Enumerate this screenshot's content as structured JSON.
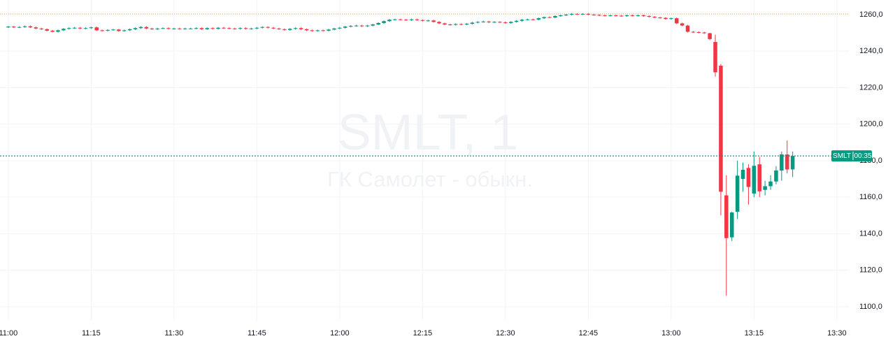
{
  "chart_data": {
    "type": "candlestick",
    "watermark_title": "SMLT, 1",
    "watermark_subtitle": "ГК Самолет - обыкн.",
    "up_color": "#089981",
    "down_color": "#f23645",
    "grid": true,
    "xlim": [
      658.5,
      812.3
    ],
    "xticks": [
      {
        "value": 660,
        "label": "11:00"
      },
      {
        "value": 675,
        "label": "11:15"
      },
      {
        "value": 690,
        "label": "11:30"
      },
      {
        "value": 705,
        "label": "11:45"
      },
      {
        "value": 720,
        "label": "12:00"
      },
      {
        "value": 735,
        "label": "12:15"
      },
      {
        "value": 750,
        "label": "12:30"
      },
      {
        "value": 765,
        "label": "12:45"
      },
      {
        "value": 780,
        "label": "13:00"
      },
      {
        "value": 795,
        "label": "13:15"
      },
      {
        "value": 810,
        "label": "13:30"
      }
    ],
    "ylim": [
      1092.7,
      1268.0
    ],
    "yticks": [
      {
        "value": 1100,
        "label": "1100,0"
      },
      {
        "value": 1120,
        "label": "1120,0"
      },
      {
        "value": 1140,
        "label": "1140,0"
      },
      {
        "value": 1160,
        "label": "1160,0"
      },
      {
        "value": 1180,
        "label": "1180,0"
      },
      {
        "value": 1200,
        "label": "1200,0"
      },
      {
        "value": 1220,
        "label": "1220,0"
      },
      {
        "value": 1240,
        "label": "1240,0"
      },
      {
        "value": 1260,
        "label": "1260,0"
      }
    ],
    "high_line": {
      "value": 1260.4,
      "color": "#f0a040"
    },
    "last_price": {
      "value": 1182.6,
      "color": "#089981",
      "symbol": "SMLT",
      "countdown": "00:35"
    },
    "x": [
      660,
      661,
      662,
      663,
      664,
      665,
      666,
      667,
      668,
      669,
      670,
      671,
      672,
      673,
      674,
      675,
      676,
      677,
      678,
      679,
      680,
      681,
      682,
      683,
      684,
      685,
      686,
      687,
      688,
      689,
      690,
      691,
      692,
      693,
      694,
      695,
      696,
      697,
      698,
      699,
      700,
      701,
      702,
      703,
      704,
      705,
      706,
      707,
      708,
      709,
      710,
      711,
      712,
      713,
      714,
      715,
      716,
      717,
      718,
      719,
      720,
      721,
      722,
      723,
      724,
      725,
      726,
      727,
      728,
      729,
      730,
      731,
      732,
      733,
      734,
      735,
      736,
      737,
      738,
      739,
      740,
      741,
      742,
      743,
      744,
      745,
      746,
      747,
      748,
      749,
      750,
      751,
      752,
      753,
      754,
      755,
      756,
      757,
      758,
      759,
      760,
      761,
      762,
      763,
      764,
      765,
      766,
      767,
      768,
      769,
      770,
      771,
      772,
      773,
      774,
      775,
      776,
      777,
      778,
      779,
      780,
      781,
      782,
      783,
      784,
      785,
      786,
      787,
      788,
      789,
      790,
      791,
      792,
      793,
      794,
      795,
      796,
      797,
      798,
      799,
      800,
      801,
      802
    ],
    "open": [
      1253.0,
      1253.4,
      1253.0,
      1253.2,
      1253.6,
      1253.0,
      1252.4,
      1252.0,
      1251.2,
      1250.6,
      1251.4,
      1252.2,
      1252.6,
      1252.8,
      1252.4,
      1252.6,
      1253.0,
      1251.4,
      1251.2,
      1251.6,
      1251.8,
      1251.0,
      1251.4,
      1252.0,
      1252.6,
      1253.2,
      1252.4,
      1252.0,
      1252.4,
      1252.6,
      1252.2,
      1252.4,
      1252.2,
      1252.4,
      1252.4,
      1252.6,
      1252.0,
      1252.6,
      1252.2,
      1252.8,
      1252.6,
      1252.4,
      1252.2,
      1252.6,
      1252.2,
      1252.4,
      1252.8,
      1253.2,
      1252.8,
      1252.4,
      1252.0,
      1251.6,
      1252.2,
      1252.6,
      1252.0,
      1251.4,
      1251.0,
      1251.4,
      1251.2,
      1251.8,
      1252.4,
      1252.8,
      1253.4,
      1253.8,
      1254.0,
      1253.6,
      1254.0,
      1254.6,
      1255.4,
      1256.4,
      1257.2,
      1257.4,
      1257.2,
      1257.0,
      1257.4,
      1257.0,
      1256.6,
      1256.8,
      1256.0,
      1255.2,
      1254.6,
      1254.4,
      1254.8,
      1254.6,
      1255.0,
      1255.6,
      1256.0,
      1256.2,
      1255.8,
      1256.0,
      1255.8,
      1255.4,
      1256.0,
      1256.6,
      1257.2,
      1257.4,
      1257.2,
      1258.0,
      1258.6,
      1258.4,
      1259.2,
      1259.6,
      1260.0,
      1260.4,
      1260.2,
      1260.4,
      1260.0,
      1259.8,
      1259.6,
      1259.4,
      1259.6,
      1259.4,
      1259.2,
      1259.6,
      1259.4,
      1259.6,
      1259.2,
      1258.8,
      1258.4,
      1258.2,
      1257.6,
      1258.0,
      1255.2,
      1254.0,
      1250.6,
      1250.4,
      1250.2,
      1249.8,
      1245.0,
      1232.0,
      1161.0,
      1138.0,
      1152.0,
      1170.0,
      1176.0,
      1162.0,
      1178.0,
      1164.0,
      1166.0,
      1168.6,
      1174.6,
      1183.4,
      1175.2
    ],
    "high": [
      1253.8,
      1253.8,
      1253.6,
      1254.0,
      1254.0,
      1253.4,
      1252.8,
      1252.4,
      1251.6,
      1251.8,
      1252.6,
      1253.0,
      1253.2,
      1253.2,
      1253.0,
      1253.4,
      1253.4,
      1251.8,
      1252.0,
      1252.2,
      1252.2,
      1251.8,
      1252.4,
      1253.0,
      1253.6,
      1253.6,
      1252.8,
      1252.8,
      1253.0,
      1253.0,
      1252.8,
      1252.8,
      1252.8,
      1252.8,
      1253.0,
      1253.0,
      1253.0,
      1253.0,
      1253.2,
      1253.2,
      1253.0,
      1252.8,
      1253.0,
      1253.0,
      1252.8,
      1253.2,
      1253.6,
      1253.6,
      1253.2,
      1252.8,
      1252.4,
      1252.6,
      1253.0,
      1253.0,
      1252.4,
      1251.8,
      1251.8,
      1251.8,
      1252.2,
      1252.8,
      1253.2,
      1253.8,
      1254.2,
      1254.4,
      1254.4,
      1254.4,
      1255.0,
      1255.8,
      1256.8,
      1257.6,
      1257.8,
      1257.8,
      1257.6,
      1257.8,
      1257.8,
      1257.4,
      1257.2,
      1257.2,
      1256.4,
      1255.6,
      1255.0,
      1255.2,
      1255.2,
      1255.4,
      1256.0,
      1256.4,
      1256.6,
      1256.6,
      1256.4,
      1256.4,
      1256.2,
      1256.4,
      1257.0,
      1257.6,
      1257.8,
      1257.8,
      1258.4,
      1259.0,
      1259.0,
      1259.6,
      1260.0,
      1260.4,
      1260.8,
      1260.8,
      1260.8,
      1260.8,
      1260.4,
      1260.2,
      1260.0,
      1260.0,
      1260.0,
      1259.8,
      1260.0,
      1260.0,
      1260.0,
      1260.0,
      1259.6,
      1259.2,
      1258.8,
      1258.6,
      1258.4,
      1258.4,
      1255.6,
      1254.4,
      1251.0,
      1250.8,
      1250.6,
      1250.0,
      1249.0,
      1233.0,
      1172.0,
      1152.0,
      1180.0,
      1179.0,
      1178.0,
      1185.0,
      1182.0,
      1169.0,
      1172.0,
      1177.0,
      1185.0,
      1191.0,
      1185.0
    ],
    "low": [
      1252.6,
      1252.6,
      1252.6,
      1252.8,
      1252.6,
      1252.0,
      1251.6,
      1250.8,
      1250.2,
      1250.2,
      1251.0,
      1251.8,
      1252.2,
      1252.0,
      1252.0,
      1252.2,
      1251.0,
      1250.8,
      1250.8,
      1251.2,
      1250.6,
      1250.6,
      1251.0,
      1251.6,
      1252.2,
      1252.0,
      1251.6,
      1251.6,
      1252.0,
      1251.8,
      1251.8,
      1251.8,
      1251.8,
      1252.0,
      1252.0,
      1251.6,
      1251.6,
      1251.8,
      1251.8,
      1252.2,
      1252.0,
      1251.8,
      1251.8,
      1251.8,
      1251.8,
      1252.0,
      1252.4,
      1252.4,
      1252.0,
      1251.6,
      1251.2,
      1251.2,
      1251.8,
      1251.6,
      1251.0,
      1250.6,
      1250.6,
      1250.8,
      1250.8,
      1251.4,
      1252.0,
      1252.4,
      1253.0,
      1253.4,
      1253.2,
      1253.2,
      1253.6,
      1254.2,
      1255.0,
      1256.0,
      1256.8,
      1256.8,
      1256.6,
      1256.6,
      1256.6,
      1256.2,
      1256.2,
      1255.6,
      1254.8,
      1254.2,
      1254.0,
      1254.0,
      1254.2,
      1254.2,
      1254.6,
      1255.2,
      1255.6,
      1255.4,
      1255.4,
      1255.4,
      1255.0,
      1255.0,
      1255.6,
      1256.2,
      1256.8,
      1256.8,
      1256.8,
      1257.6,
      1258.0,
      1258.0,
      1258.8,
      1259.2,
      1259.6,
      1259.8,
      1259.8,
      1259.6,
      1259.4,
      1259.2,
      1259.0,
      1259.0,
      1259.0,
      1258.8,
      1258.8,
      1259.0,
      1259.0,
      1258.8,
      1258.4,
      1258.0,
      1257.8,
      1257.2,
      1257.2,
      1254.8,
      1253.6,
      1250.2,
      1250.0,
      1249.8,
      1249.4,
      1246.0,
      1226.0,
      1150.0,
      1106.0,
      1136.0,
      1148.0,
      1163.0,
      1156.0,
      1160.0,
      1160.0,
      1161.0,
      1164.0,
      1167.0,
      1169.0,
      1173.0,
      1171.0
    ],
    "close": [
      1253.4,
      1253.0,
      1253.2,
      1253.6,
      1253.0,
      1252.4,
      1252.0,
      1251.2,
      1250.6,
      1251.4,
      1252.2,
      1252.6,
      1252.8,
      1252.4,
      1252.6,
      1253.0,
      1251.4,
      1251.2,
      1251.6,
      1251.8,
      1251.0,
      1251.4,
      1252.0,
      1252.6,
      1253.2,
      1252.4,
      1252.0,
      1252.4,
      1252.6,
      1252.2,
      1252.4,
      1252.2,
      1252.4,
      1252.4,
      1252.6,
      1252.0,
      1252.6,
      1252.2,
      1252.8,
      1252.6,
      1252.4,
      1252.2,
      1252.6,
      1252.2,
      1252.4,
      1252.8,
      1253.2,
      1252.8,
      1252.4,
      1252.0,
      1251.6,
      1252.2,
      1252.6,
      1252.0,
      1251.4,
      1251.0,
      1251.4,
      1251.2,
      1251.8,
      1252.4,
      1252.8,
      1253.4,
      1253.8,
      1254.0,
      1253.6,
      1254.0,
      1254.6,
      1255.4,
      1256.4,
      1257.2,
      1257.4,
      1257.2,
      1257.0,
      1257.4,
      1257.0,
      1256.6,
      1256.8,
      1256.0,
      1255.2,
      1254.6,
      1254.4,
      1254.8,
      1254.6,
      1255.0,
      1255.6,
      1256.0,
      1256.2,
      1255.8,
      1256.0,
      1255.8,
      1255.4,
      1256.0,
      1256.6,
      1257.2,
      1257.4,
      1257.2,
      1258.0,
      1258.6,
      1258.4,
      1259.2,
      1259.6,
      1260.0,
      1260.4,
      1260.2,
      1260.4,
      1260.0,
      1259.8,
      1259.6,
      1259.4,
      1259.6,
      1259.4,
      1259.2,
      1259.6,
      1259.4,
      1259.6,
      1259.2,
      1258.8,
      1258.4,
      1258.2,
      1257.6,
      1258.0,
      1255.2,
      1254.0,
      1250.6,
      1250.4,
      1250.2,
      1249.8,
      1246.6,
      1228.4,
      1163.0,
      1137.6,
      1151.6,
      1171.8,
      1175.0,
      1165.6,
      1177.2,
      1163.2,
      1166.0,
      1168.6,
      1174.6,
      1183.4,
      1175.2,
      1182.6
    ]
  }
}
